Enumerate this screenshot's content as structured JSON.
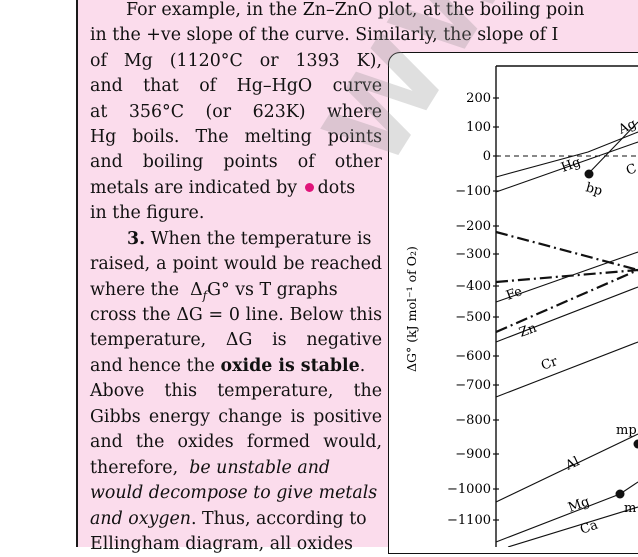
{
  "text_lines": [
    "For example, in the Zn–ZnO plot, at the boiling poin",
    "in the +ve slope of the curve. Similarly, the slope of I",
    "of Mg (1120°C or 1393 K),",
    "and that of Hg–HgO curve",
    "at 356°C (or 623K) where",
    "Hg boils. The melting points",
    "and boiling points of other",
    "metals are indicated by",
    "dots",
    "in the figure."
  ],
  "point3": {
    "number": "3.",
    "lines": [
      "When the temperature is",
      "raised, a point would be reached",
      "where the",
      "vs T graphs",
      "cross the ΔG = 0 line. Below this",
      "temperature, ΔG is negative",
      "and hence the",
      "oxide is stable",
      ".",
      "Above this temperature, the",
      "Gibbs energy change is positive",
      "and the oxides formed would,",
      "therefore,",
      "be unstable and",
      "would decompose to give metals",
      "and oxygen",
      ". Thus, according to",
      "Ellingham diagram, all oxides"
    ],
    "delta_g": "Δ",
    "sub_f": "f",
    "g_deg": "G°"
  },
  "chart": {
    "ylabel": "ΔG° (kJ mol⁻¹ of O₂)",
    "yticks": [
      "200",
      "100",
      "0",
      "−100",
      "−200",
      "−300",
      "−400",
      "−500",
      "−600",
      "−700",
      "−800",
      "−900",
      "−1000",
      "−1100"
    ],
    "curve_labels": [
      "Hg",
      "bp",
      "Ag",
      "C",
      "Fe",
      "Zn",
      "Cr",
      "Al",
      "Mg",
      "Ca",
      "mp",
      "m"
    ]
  },
  "watermark": "WWW.JEE",
  "colors": {
    "pink_panel": "#fbdcec",
    "dot": "#e0147a"
  }
}
